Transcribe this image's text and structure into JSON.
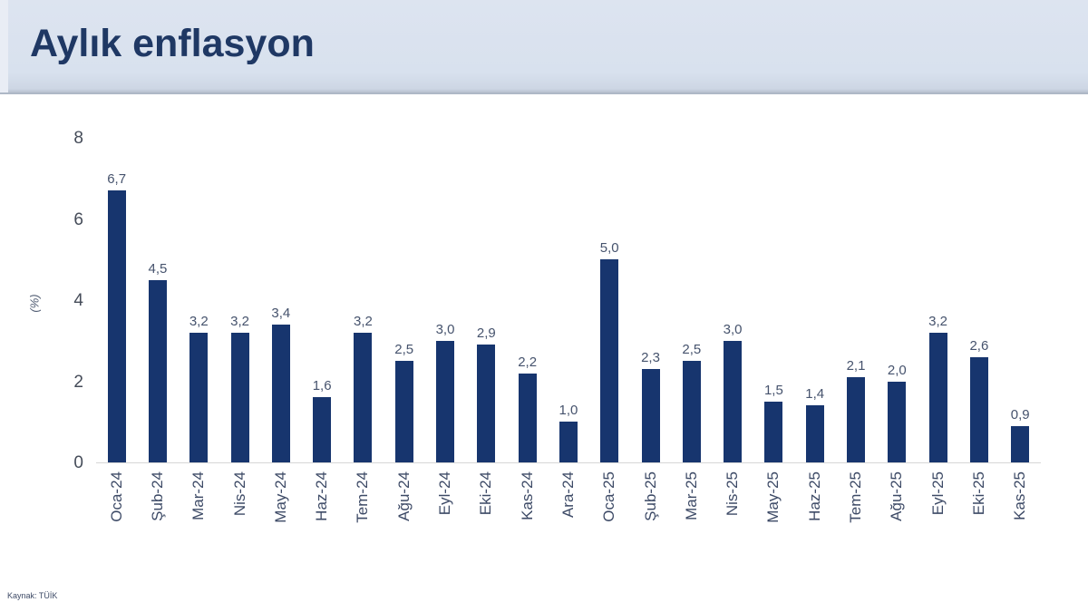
{
  "header": {
    "title": "Aylık enflasyon"
  },
  "footer": {
    "source": "Kaynak: TÜİK"
  },
  "colors": {
    "header_bg": "#d9e2ef",
    "title_text": "#1f3864",
    "bar_fill": "#17356e",
    "value_label": "#46536d",
    "tick_label": "#454c59",
    "axis_line": "#d6d6d6",
    "background": "#ffffff"
  },
  "chart_data": {
    "type": "bar",
    "title": "Aylık enflasyon",
    "categories": [
      "Oca-24",
      "Şub-24",
      "Mar-24",
      "Nis-24",
      "May-24",
      "Haz-24",
      "Tem-24",
      "Ağu-24",
      "Eyl-24",
      "Eki-24",
      "Kas-24",
      "Ara-24",
      "Oca-25",
      "Şub-25",
      "Mar-25",
      "Nis-25",
      "May-25",
      "Haz-25",
      "Tem-25",
      "Ağu-25",
      "Eyl-25",
      "Eki-25",
      "Kas-25"
    ],
    "values": [
      6.7,
      4.5,
      3.2,
      3.2,
      3.4,
      1.6,
      3.2,
      2.5,
      3.0,
      2.9,
      2.2,
      1.0,
      5.0,
      2.3,
      2.5,
      3.0,
      1.5,
      1.4,
      2.1,
      2.0,
      3.2,
      2.6,
      0.9
    ],
    "value_labels": [
      "6,7",
      "4,5",
      "3,2",
      "3,2",
      "3,4",
      "1,6",
      "3,2",
      "2,5",
      "3,0",
      "2,9",
      "2,2",
      "1,0",
      "5,0",
      "2,3",
      "2,5",
      "3,0",
      "1,5",
      "1,4",
      "2,1",
      "2,0",
      "3,2",
      "2,6",
      "0,9"
    ],
    "xlabel": "",
    "ylabel": "(%)",
    "ylim": [
      0,
      8
    ],
    "yticks": [
      0,
      2,
      4,
      6,
      8
    ],
    "grid": false,
    "legend": false,
    "source": "Kaynak: TÜİK"
  }
}
